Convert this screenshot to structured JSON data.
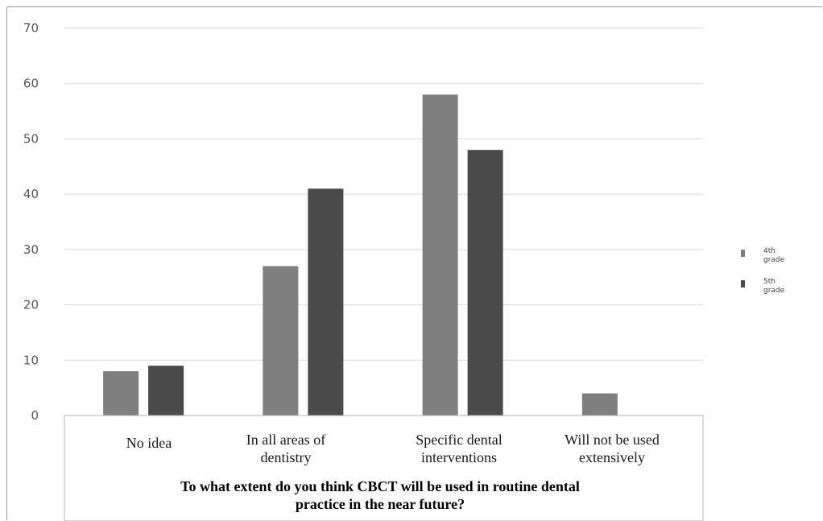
{
  "chart_data": {
    "type": "bar",
    "categories": [
      "No idea",
      "In all areas of dentistry",
      "Specific dental interventions",
      "Will not be used extensively"
    ],
    "category_lines": [
      [
        "No idea"
      ],
      [
        "In all areas of",
        "dentistry"
      ],
      [
        "Specific dental",
        "interventions"
      ],
      [
        "Will not be used",
        "extensively"
      ]
    ],
    "series": [
      {
        "name": "4th grade",
        "name_lines": [
          "4th",
          "grade"
        ],
        "color": "#7f7f7f",
        "values": [
          8,
          27,
          58,
          4
        ]
      },
      {
        "name": "5th grade",
        "name_lines": [
          "5th",
          "grade"
        ],
        "color": "#4a4a4a",
        "values": [
          9,
          41,
          48,
          0
        ]
      }
    ],
    "ylim": [
      0,
      70
    ],
    "yticks": [
      0,
      10,
      20,
      30,
      40,
      50,
      60,
      70
    ],
    "title_lines": [
      "To what extent do you think CBCT will be used in routine dental",
      "practice in the near future?"
    ],
    "grid": true,
    "legend": "right"
  }
}
